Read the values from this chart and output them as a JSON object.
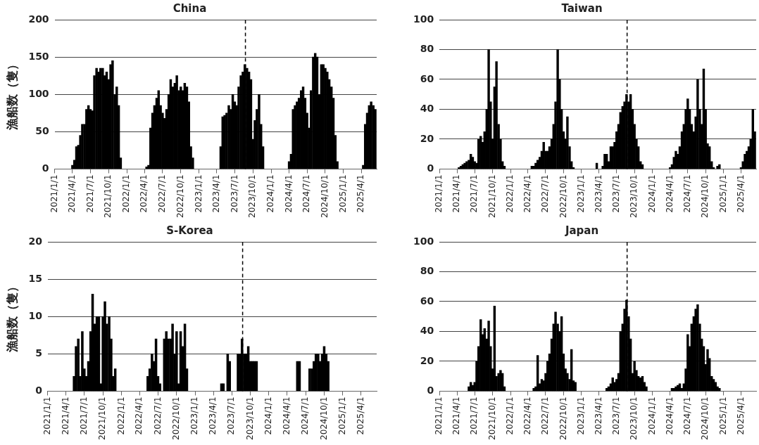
{
  "chart_data": [
    {
      "type": "bar",
      "title": "China",
      "ylabel": "漁船数（隻）",
      "color": "#000000",
      "grid": "y",
      "xlim": [
        "2021-01-01",
        "2025-06-18"
      ],
      "ylim": [
        0,
        200
      ],
      "yticks": [
        0,
        50,
        100,
        150,
        200
      ],
      "xticks": [
        {
          "value": "2021-01-01",
          "label": "2021/1/1"
        },
        {
          "value": "2021-04-01",
          "label": "2021/4/1"
        },
        {
          "value": "2021-07-01",
          "label": "2021/7/1"
        },
        {
          "value": "2021-10-01",
          "label": "2021/10/1"
        },
        {
          "value": "2022-01-01",
          "label": "2022/1/1"
        },
        {
          "value": "2022-04-01",
          "label": "2022/4/1"
        },
        {
          "value": "2022-07-01",
          "label": "2022/7/1"
        },
        {
          "value": "2022-10-01",
          "label": "2022/10/1"
        },
        {
          "value": "2023-01-01",
          "label": "2023/1/1"
        },
        {
          "value": "2023-04-01",
          "label": "2023/4/1"
        },
        {
          "value": "2023-07-01",
          "label": "2023/7/1"
        },
        {
          "value": "2023-10-01",
          "label": "2023/10/1"
        },
        {
          "value": "2024-01-01",
          "label": "2024/1/1"
        },
        {
          "value": "2024-04-01",
          "label": "2024/4/1"
        },
        {
          "value": "2024-07-01",
          "label": "2024/7/1"
        },
        {
          "value": "2024-10-01",
          "label": "2024/10/1"
        },
        {
          "value": "2025-01-01",
          "label": "2025/1/1"
        },
        {
          "value": "2025-04-01",
          "label": "2025/4/1"
        }
      ],
      "ref_lines": [
        {
          "axis": "x",
          "value": "2023-08-24",
          "color": "#000000",
          "line_style": "dashed"
        }
      ],
      "x": [
        "2021-04-01",
        "2021-04-11",
        "2021-04-21",
        "2021-05-01",
        "2021-05-11",
        "2021-05-21",
        "2021-06-01",
        "2021-06-11",
        "2021-06-21",
        "2021-07-01",
        "2021-07-11",
        "2021-07-21",
        "2021-08-01",
        "2021-08-11",
        "2021-08-21",
        "2021-09-01",
        "2021-09-11",
        "2021-09-21",
        "2021-10-01",
        "2021-10-11",
        "2021-10-21",
        "2021-11-01",
        "2021-11-11",
        "2021-11-21",
        "2021-12-01",
        "2022-04-11",
        "2022-04-21",
        "2022-05-01",
        "2022-05-11",
        "2022-05-21",
        "2022-06-01",
        "2022-06-11",
        "2022-06-21",
        "2022-07-01",
        "2022-07-11",
        "2022-07-21",
        "2022-08-01",
        "2022-08-11",
        "2022-08-21",
        "2022-09-01",
        "2022-09-11",
        "2022-09-21",
        "2022-10-01",
        "2022-10-11",
        "2022-10-21",
        "2022-11-01",
        "2022-11-11",
        "2022-11-21",
        "2022-12-01",
        "2023-04-21",
        "2023-05-01",
        "2023-05-11",
        "2023-05-21",
        "2023-06-01",
        "2023-06-11",
        "2023-06-21",
        "2023-07-01",
        "2023-07-11",
        "2023-07-21",
        "2023-08-01",
        "2023-08-11",
        "2023-08-21",
        "2023-09-01",
        "2023-09-11",
        "2023-09-21",
        "2023-10-01",
        "2023-10-11",
        "2023-10-21",
        "2023-11-01",
        "2023-11-11",
        "2023-11-21",
        "2024-04-01",
        "2024-04-11",
        "2024-04-21",
        "2024-05-01",
        "2024-05-11",
        "2024-05-21",
        "2024-06-01",
        "2024-06-11",
        "2024-06-21",
        "2024-07-01",
        "2024-07-11",
        "2024-07-21",
        "2024-08-01",
        "2024-08-11",
        "2024-08-21",
        "2024-09-01",
        "2024-09-11",
        "2024-09-21",
        "2024-10-01",
        "2024-10-11",
        "2024-10-21",
        "2024-11-01",
        "2024-11-11",
        "2024-11-21",
        "2024-12-01",
        "2025-04-11",
        "2025-04-21",
        "2025-05-01",
        "2025-05-11",
        "2025-05-21",
        "2025-06-01",
        "2025-06-11"
      ],
      "values": [
        5,
        12,
        30,
        32,
        45,
        60,
        60,
        80,
        85,
        80,
        78,
        125,
        135,
        130,
        135,
        135,
        125,
        130,
        120,
        140,
        145,
        100,
        110,
        85,
        15,
        3,
        5,
        55,
        75,
        85,
        95,
        105,
        85,
        75,
        68,
        80,
        100,
        120,
        110,
        115,
        125,
        105,
        110,
        105,
        115,
        110,
        90,
        30,
        15,
        30,
        70,
        72,
        75,
        85,
        80,
        100,
        90,
        85,
        110,
        125,
        130,
        140,
        135,
        130,
        120,
        40,
        65,
        80,
        100,
        60,
        30,
        10,
        20,
        80,
        85,
        90,
        95,
        105,
        110,
        95,
        75,
        55,
        105,
        150,
        155,
        150,
        100,
        140,
        140,
        135,
        130,
        120,
        110,
        95,
        45,
        10,
        5,
        60,
        75,
        85,
        90,
        85,
        80
      ]
    },
    {
      "type": "bar",
      "title": "Taiwan",
      "color": "#000000",
      "grid": "y",
      "xlim": [
        "2021-01-01",
        "2025-06-18"
      ],
      "ylim": [
        0,
        100
      ],
      "yticks": [
        0,
        20,
        40,
        60,
        80,
        100
      ],
      "xticks": [
        {
          "value": "2021-01-01",
          "label": "2021/1/1"
        },
        {
          "value": "2021-04-01",
          "label": "2021/4/1"
        },
        {
          "value": "2021-07-01",
          "label": "2021/7/1"
        },
        {
          "value": "2021-10-01",
          "label": "2021/10/1"
        },
        {
          "value": "2022-01-01",
          "label": "2022/1/1"
        },
        {
          "value": "2022-04-01",
          "label": "2022/4/1"
        },
        {
          "value": "2022-07-01",
          "label": "2022/7/1"
        },
        {
          "value": "2022-10-01",
          "label": "2022/10/1"
        },
        {
          "value": "2023-01-01",
          "label": "2023/1/1"
        },
        {
          "value": "2023-04-01",
          "label": "2023/4/1"
        },
        {
          "value": "2023-07-01",
          "label": "2023/7/1"
        },
        {
          "value": "2023-10-01",
          "label": "2023/10/1"
        },
        {
          "value": "2024-01-01",
          "label": "2024/1/1"
        },
        {
          "value": "2024-04-01",
          "label": "2024/4/1"
        },
        {
          "value": "2024-07-01",
          "label": "2024/7/1"
        },
        {
          "value": "2024-10-01",
          "label": "2024/10/1"
        },
        {
          "value": "2025-01-01",
          "label": "2025/1/1"
        },
        {
          "value": "2025-04-01",
          "label": "2025/4/1"
        }
      ],
      "ref_lines": [
        {
          "axis": "x",
          "value": "2023-08-24",
          "color": "#000000",
          "line_style": "dashed"
        }
      ],
      "x": [
        "2021-04-11",
        "2021-04-21",
        "2021-05-01",
        "2021-05-11",
        "2021-05-21",
        "2021-06-01",
        "2021-06-11",
        "2021-06-21",
        "2021-07-01",
        "2021-07-11",
        "2021-07-21",
        "2021-08-01",
        "2021-08-11",
        "2021-08-21",
        "2021-09-01",
        "2021-09-11",
        "2021-09-21",
        "2021-10-01",
        "2021-10-11",
        "2021-10-21",
        "2021-11-01",
        "2021-11-11",
        "2021-11-21",
        "2021-12-01",
        "2022-04-21",
        "2022-05-01",
        "2022-05-11",
        "2022-05-21",
        "2022-06-01",
        "2022-06-11",
        "2022-06-21",
        "2022-07-01",
        "2022-07-11",
        "2022-07-21",
        "2022-08-01",
        "2022-08-11",
        "2022-08-21",
        "2022-09-01",
        "2022-09-11",
        "2022-09-21",
        "2022-10-01",
        "2022-10-11",
        "2022-10-21",
        "2022-11-01",
        "2022-11-11",
        "2022-11-21",
        "2023-03-21",
        "2023-04-21",
        "2023-05-01",
        "2023-05-11",
        "2023-05-21",
        "2023-06-01",
        "2023-06-11",
        "2023-06-21",
        "2023-07-01",
        "2023-07-11",
        "2023-07-21",
        "2023-08-01",
        "2023-08-11",
        "2023-08-21",
        "2023-09-01",
        "2023-09-11",
        "2023-09-21",
        "2023-10-01",
        "2023-10-11",
        "2023-10-21",
        "2023-11-01",
        "2023-11-11",
        "2024-04-01",
        "2024-04-11",
        "2024-04-21",
        "2024-05-01",
        "2024-05-11",
        "2024-05-21",
        "2024-06-01",
        "2024-06-11",
        "2024-06-21",
        "2024-07-01",
        "2024-07-11",
        "2024-07-21",
        "2024-08-01",
        "2024-08-11",
        "2024-08-21",
        "2024-09-01",
        "2024-09-11",
        "2024-09-21",
        "2024-10-01",
        "2024-10-11",
        "2024-10-21",
        "2024-11-01",
        "2024-11-11",
        "2024-12-01",
        "2024-12-11",
        "2025-04-01",
        "2025-04-11",
        "2025-04-21",
        "2025-05-01",
        "2025-05-11",
        "2025-05-21",
        "2025-06-01",
        "2025-06-11"
      ],
      "values": [
        1,
        2,
        3,
        4,
        5,
        6,
        10,
        8,
        5,
        4,
        20,
        22,
        18,
        25,
        40,
        80,
        45,
        20,
        55,
        72,
        30,
        20,
        5,
        2,
        2,
        2,
        4,
        6,
        8,
        12,
        18,
        12,
        12,
        15,
        20,
        30,
        45,
        80,
        60,
        40,
        25,
        20,
        35,
        15,
        5,
        1,
        4,
        2,
        10,
        10,
        5,
        15,
        15,
        18,
        25,
        30,
        38,
        42,
        45,
        50,
        45,
        50,
        40,
        30,
        20,
        15,
        5,
        3,
        1,
        3,
        8,
        12,
        10,
        15,
        25,
        30,
        40,
        47,
        40,
        30,
        25,
        35,
        60,
        40,
        30,
        67,
        40,
        17,
        15,
        5,
        1,
        2,
        3,
        1,
        5,
        10,
        12,
        15,
        20,
        40,
        25
      ]
    },
    {
      "type": "bar",
      "title": "S-Korea",
      "ylabel": "漁船数（隻）",
      "color": "#000000",
      "grid": "y",
      "xlim": [
        "2021-01-01",
        "2025-06-18"
      ],
      "ylim": [
        0,
        20
      ],
      "yticks": [
        0,
        5,
        10,
        15,
        20
      ],
      "xticks": [
        {
          "value": "2021-01-01",
          "label": "2021/1/1"
        },
        {
          "value": "2021-04-01",
          "label": "2021/4/1"
        },
        {
          "value": "2021-07-01",
          "label": "2021/7/1"
        },
        {
          "value": "2021-10-01",
          "label": "2021/10/1"
        },
        {
          "value": "2022-01-01",
          "label": "2022/1/1"
        },
        {
          "value": "2022-04-01",
          "label": "2022/4/1"
        },
        {
          "value": "2022-07-01",
          "label": "2022/7/1"
        },
        {
          "value": "2022-10-01",
          "label": "2022/10/1"
        },
        {
          "value": "2023-01-01",
          "label": "2023/1/1"
        },
        {
          "value": "2023-04-01",
          "label": "2023/4/1"
        },
        {
          "value": "2023-07-01",
          "label": "2023/7/1"
        },
        {
          "value": "2023-10-01",
          "label": "2023/10/1"
        },
        {
          "value": "2024-01-01",
          "label": "2024/1/1"
        },
        {
          "value": "2024-04-01",
          "label": "2024/4/1"
        },
        {
          "value": "2024-07-01",
          "label": "2024/7/1"
        },
        {
          "value": "2024-10-01",
          "label": "2024/10/1"
        },
        {
          "value": "2025-01-01",
          "label": "2025/1/1"
        },
        {
          "value": "2025-04-01",
          "label": "2025/4/1"
        }
      ],
      "ref_lines": [
        {
          "axis": "x",
          "value": "2023-08-24",
          "color": "#000000",
          "line_style": "dashed"
        }
      ],
      "x": [
        "2021-05-11",
        "2021-05-21",
        "2021-06-01",
        "2021-06-11",
        "2021-06-21",
        "2021-07-01",
        "2021-07-11",
        "2021-07-21",
        "2021-08-01",
        "2021-08-11",
        "2021-08-21",
        "2021-09-01",
        "2021-09-11",
        "2021-09-21",
        "2021-10-01",
        "2021-10-11",
        "2021-10-21",
        "2021-11-01",
        "2021-11-11",
        "2021-11-21",
        "2021-12-01",
        "2022-05-11",
        "2022-05-21",
        "2022-06-01",
        "2022-06-11",
        "2022-06-21",
        "2022-07-01",
        "2022-07-11",
        "2022-08-01",
        "2022-08-11",
        "2022-08-21",
        "2022-09-01",
        "2022-09-11",
        "2022-09-21",
        "2022-10-01",
        "2022-10-11",
        "2022-10-21",
        "2022-11-01",
        "2022-11-11",
        "2022-11-21",
        "2023-05-11",
        "2023-05-21",
        "2023-06-11",
        "2023-06-21",
        "2023-08-01",
        "2023-08-11",
        "2023-08-21",
        "2023-09-01",
        "2023-09-11",
        "2023-09-21",
        "2023-10-01",
        "2023-10-11",
        "2023-10-21",
        "2023-11-01",
        "2024-05-21",
        "2024-06-01",
        "2024-07-21",
        "2024-08-01",
        "2024-08-11",
        "2024-08-21",
        "2024-09-01",
        "2024-09-11",
        "2024-09-21",
        "2024-10-01",
        "2024-10-11",
        "2024-10-21"
      ],
      "values": [
        2,
        6,
        7,
        2,
        8,
        3,
        2,
        4,
        8,
        13,
        9,
        10,
        10,
        1,
        10,
        12,
        9,
        10,
        7,
        2,
        3,
        2,
        3,
        5,
        4,
        7,
        2,
        1,
        7,
        8,
        7,
        7,
        9,
        5,
        8,
        1,
        8,
        6,
        9,
        3,
        1,
        1,
        5,
        4,
        5,
        5,
        7,
        5,
        5,
        6,
        4,
        4,
        4,
        4,
        4,
        4,
        3,
        3,
        4,
        5,
        5,
        4,
        5,
        6,
        5,
        4
      ]
    },
    {
      "type": "bar",
      "title": "Japan",
      "color": "#000000",
      "grid": "y",
      "xlim": [
        "2021-01-01",
        "2025-06-18"
      ],
      "ylim": [
        0,
        100
      ],
      "yticks": [
        0,
        20,
        40,
        60,
        80,
        100
      ],
      "xticks": [
        {
          "value": "2021-01-01",
          "label": "2021/1/1"
        },
        {
          "value": "2021-04-01",
          "label": "2021/4/1"
        },
        {
          "value": "2021-07-01",
          "label": "2021/7/1"
        },
        {
          "value": "2021-10-01",
          "label": "2021/10/1"
        },
        {
          "value": "2022-01-01",
          "label": "2022/1/1"
        },
        {
          "value": "2022-04-01",
          "label": "2022/4/1"
        },
        {
          "value": "2022-07-01",
          "label": "2022/7/1"
        },
        {
          "value": "2022-10-01",
          "label": "2022/10/1"
        },
        {
          "value": "2023-01-01",
          "label": "2023/1/1"
        },
        {
          "value": "2023-04-01",
          "label": "2023/4/1"
        },
        {
          "value": "2023-07-01",
          "label": "2023/7/1"
        },
        {
          "value": "2023-10-01",
          "label": "2023/10/1"
        },
        {
          "value": "2024-01-01",
          "label": "2024/1/1"
        },
        {
          "value": "2024-04-01",
          "label": "2024/4/1"
        },
        {
          "value": "2024-07-01",
          "label": "2024/7/1"
        },
        {
          "value": "2024-10-01",
          "label": "2024/10/1"
        },
        {
          "value": "2025-01-01",
          "label": "2025/1/1"
        },
        {
          "value": "2025-04-01",
          "label": "2025/4/1"
        }
      ],
      "ref_lines": [
        {
          "axis": "x",
          "value": "2023-08-24",
          "color": "#000000",
          "line_style": "dashed"
        }
      ],
      "x": [
        "2021-06-01",
        "2021-06-11",
        "2021-06-21",
        "2021-07-01",
        "2021-07-11",
        "2021-07-21",
        "2021-08-01",
        "2021-08-11",
        "2021-08-21",
        "2021-09-01",
        "2021-09-11",
        "2021-09-21",
        "2021-10-01",
        "2021-10-11",
        "2021-10-21",
        "2021-11-01",
        "2021-11-11",
        "2021-11-21",
        "2021-12-01",
        "2022-05-01",
        "2022-05-11",
        "2022-05-21",
        "2022-06-01",
        "2022-06-11",
        "2022-06-21",
        "2022-07-01",
        "2022-07-11",
        "2022-07-21",
        "2022-08-01",
        "2022-08-11",
        "2022-08-21",
        "2022-09-01",
        "2022-09-11",
        "2022-09-21",
        "2022-10-01",
        "2022-10-11",
        "2022-10-21",
        "2022-11-01",
        "2022-11-11",
        "2022-11-21",
        "2022-12-01",
        "2023-05-11",
        "2023-05-21",
        "2023-06-01",
        "2023-06-11",
        "2023-06-21",
        "2023-07-01",
        "2023-07-11",
        "2023-07-21",
        "2023-08-01",
        "2023-08-11",
        "2023-08-21",
        "2023-09-01",
        "2023-09-11",
        "2023-09-21",
        "2023-10-01",
        "2023-10-11",
        "2023-10-21",
        "2023-11-01",
        "2023-11-11",
        "2023-11-21",
        "2023-12-01",
        "2024-04-11",
        "2024-04-21",
        "2024-05-01",
        "2024-05-11",
        "2024-05-21",
        "2024-06-01",
        "2024-06-11",
        "2024-06-21",
        "2024-07-01",
        "2024-07-11",
        "2024-07-21",
        "2024-08-01",
        "2024-08-11",
        "2024-08-21",
        "2024-09-01",
        "2024-09-11",
        "2024-09-21",
        "2024-10-01",
        "2024-10-11",
        "2024-10-21",
        "2024-11-01",
        "2024-11-11",
        "2024-11-21",
        "2024-12-01",
        "2024-12-11"
      ],
      "values": [
        3,
        6,
        4,
        6,
        20,
        30,
        48,
        38,
        42,
        35,
        47,
        30,
        15,
        57,
        10,
        12,
        14,
        12,
        3,
        2,
        3,
        24,
        5,
        8,
        7,
        12,
        20,
        25,
        35,
        45,
        53,
        45,
        40,
        50,
        25,
        15,
        12,
        8,
        28,
        7,
        6,
        2,
        3,
        5,
        9,
        6,
        8,
        12,
        40,
        45,
        55,
        61,
        50,
        35,
        12,
        20,
        14,
        10,
        9,
        10,
        6,
        3,
        2,
        2,
        3,
        4,
        5,
        2,
        5,
        15,
        38,
        30,
        45,
        50,
        55,
        58,
        45,
        35,
        30,
        18,
        28,
        22,
        10,
        8,
        6,
        3,
        2
      ]
    }
  ]
}
